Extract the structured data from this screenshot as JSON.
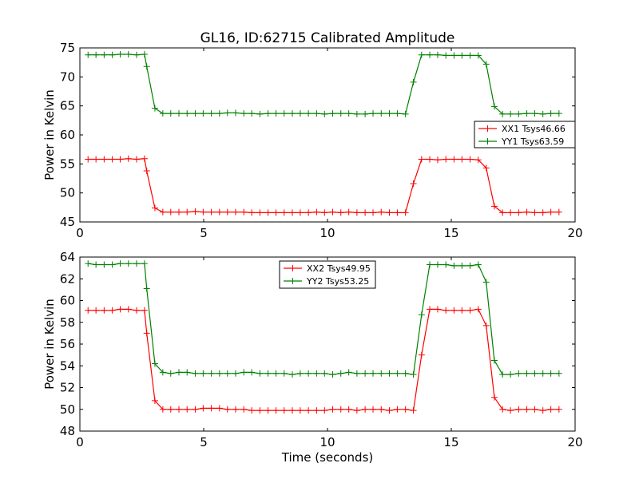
{
  "chart_data": {
    "title": "GL16, ID:62715 Calibrated Amplitude",
    "panels": [
      {
        "type": "line",
        "xlabel": "",
        "ylabel": "Power in Kelvin",
        "xlim": [
          0,
          20
        ],
        "ylim": [
          45,
          75
        ],
        "xticks": [
          0,
          5,
          10,
          15,
          20
        ],
        "yticks": [
          45,
          50,
          55,
          60,
          65,
          70,
          75
        ],
        "grid": false,
        "legend": "right",
        "series": [
          {
            "name": "XX1 Tsys46.66",
            "color": "#ff0000",
            "x": [
              0.33,
              0.65,
              0.98,
              1.31,
              1.63,
              1.96,
              2.29,
              2.61,
              2.7,
              3.03,
              3.35,
              3.67,
              4.0,
              4.33,
              4.66,
              4.98,
              5.31,
              5.64,
              5.96,
              6.29,
              6.62,
              6.94,
              7.27,
              7.6,
              7.92,
              8.25,
              8.58,
              8.9,
              9.23,
              9.56,
              9.88,
              10.21,
              10.54,
              10.86,
              11.19,
              11.52,
              11.84,
              12.17,
              12.5,
              12.82,
              13.15,
              13.47,
              13.8,
              14.13,
              14.45,
              14.78,
              15.11,
              15.43,
              15.76,
              16.09,
              16.41,
              16.74,
              17.07,
              17.39,
              17.72,
              18.05,
              18.37,
              18.7,
              19.02,
              19.35
            ],
            "y": [
              55.8,
              55.8,
              55.8,
              55.8,
              55.8,
              55.9,
              55.8,
              55.9,
              53.8,
              47.4,
              46.7,
              46.7,
              46.7,
              46.7,
              46.8,
              46.7,
              46.7,
              46.7,
              46.7,
              46.7,
              46.7,
              46.6,
              46.6,
              46.6,
              46.6,
              46.6,
              46.6,
              46.6,
              46.6,
              46.7,
              46.6,
              46.7,
              46.6,
              46.7,
              46.6,
              46.6,
              46.6,
              46.7,
              46.6,
              46.6,
              46.6,
              51.6,
              55.8,
              55.8,
              55.7,
              55.8,
              55.8,
              55.8,
              55.8,
              55.7,
              54.3,
              47.7,
              46.6,
              46.6,
              46.6,
              46.7,
              46.6,
              46.6,
              46.7,
              46.7
            ]
          },
          {
            "name": "YY1 Tsys63.59",
            "color": "#008000",
            "x": [
              0.33,
              0.65,
              0.98,
              1.31,
              1.63,
              1.96,
              2.29,
              2.61,
              2.7,
              3.03,
              3.35,
              3.67,
              4.0,
              4.33,
              4.66,
              4.98,
              5.31,
              5.64,
              5.96,
              6.29,
              6.62,
              6.94,
              7.27,
              7.6,
              7.92,
              8.25,
              8.58,
              8.9,
              9.23,
              9.56,
              9.88,
              10.21,
              10.54,
              10.86,
              11.19,
              11.52,
              11.84,
              12.17,
              12.5,
              12.82,
              13.15,
              13.47,
              13.8,
              14.13,
              14.45,
              14.78,
              15.11,
              15.43,
              15.76,
              16.09,
              16.41,
              16.74,
              17.07,
              17.39,
              17.72,
              18.05,
              18.37,
              18.7,
              19.02,
              19.35
            ],
            "y": [
              73.8,
              73.8,
              73.8,
              73.8,
              73.9,
              73.9,
              73.8,
              73.9,
              71.8,
              64.6,
              63.7,
              63.7,
              63.7,
              63.7,
              63.7,
              63.7,
              63.7,
              63.7,
              63.8,
              63.8,
              63.7,
              63.7,
              63.6,
              63.7,
              63.7,
              63.7,
              63.7,
              63.7,
              63.7,
              63.7,
              63.6,
              63.7,
              63.7,
              63.7,
              63.6,
              63.6,
              63.7,
              63.7,
              63.7,
              63.7,
              63.6,
              69.1,
              73.8,
              73.8,
              73.8,
              73.7,
              73.7,
              73.7,
              73.7,
              73.7,
              72.2,
              64.9,
              63.6,
              63.6,
              63.6,
              63.7,
              63.7,
              63.6,
              63.7,
              63.7
            ]
          }
        ]
      },
      {
        "type": "line",
        "xlabel": "Time (seconds)",
        "ylabel": "Power in Kelvin",
        "xlim": [
          0,
          20
        ],
        "ylim": [
          48,
          64
        ],
        "xticks": [
          0,
          5,
          10,
          15,
          20
        ],
        "yticks": [
          48,
          50,
          52,
          54,
          56,
          58,
          60,
          62,
          64
        ],
        "grid": false,
        "legend": "top-center",
        "series": [
          {
            "name": "XX2 Tsys49.95",
            "color": "#ff0000",
            "x": [
              0.33,
              0.65,
              0.98,
              1.31,
              1.63,
              1.96,
              2.29,
              2.61,
              2.7,
              3.03,
              3.35,
              3.67,
              4.0,
              4.33,
              4.66,
              4.98,
              5.31,
              5.64,
              5.96,
              6.29,
              6.62,
              6.94,
              7.27,
              7.6,
              7.92,
              8.25,
              8.58,
              8.9,
              9.23,
              9.56,
              9.88,
              10.21,
              10.54,
              10.86,
              11.19,
              11.52,
              11.84,
              12.17,
              12.5,
              12.82,
              13.15,
              13.47,
              13.8,
              14.13,
              14.45,
              14.78,
              15.11,
              15.43,
              15.76,
              16.09,
              16.41,
              16.74,
              17.07,
              17.39,
              17.72,
              18.05,
              18.37,
              18.7,
              19.02,
              19.35
            ],
            "y": [
              59.1,
              59.1,
              59.1,
              59.1,
              59.2,
              59.2,
              59.1,
              59.1,
              57.0,
              50.8,
              50.0,
              50.0,
              50.0,
              50.0,
              50.0,
              50.1,
              50.1,
              50.1,
              50.0,
              50.0,
              50.0,
              49.9,
              49.9,
              49.9,
              49.9,
              49.9,
              49.9,
              49.9,
              49.9,
              49.9,
              49.9,
              50.0,
              50.0,
              50.0,
              49.9,
              50.0,
              50.0,
              50.0,
              49.9,
              50.0,
              50.0,
              49.9,
              55.0,
              59.2,
              59.2,
              59.1,
              59.1,
              59.1,
              59.1,
              59.2,
              57.7,
              51.1,
              50.0,
              49.9,
              50.0,
              50.0,
              50.0,
              49.9,
              50.0,
              50.0
            ]
          },
          {
            "name": "YY2 Tsys53.25",
            "color": "#008000",
            "x": [
              0.33,
              0.65,
              0.98,
              1.31,
              1.63,
              1.96,
              2.29,
              2.61,
              2.7,
              3.03,
              3.35,
              3.67,
              4.0,
              4.33,
              4.66,
              4.98,
              5.31,
              5.64,
              5.96,
              6.29,
              6.62,
              6.94,
              7.27,
              7.6,
              7.92,
              8.25,
              8.58,
              8.9,
              9.23,
              9.56,
              9.88,
              10.21,
              10.54,
              10.86,
              11.19,
              11.52,
              11.84,
              12.17,
              12.5,
              12.82,
              13.15,
              13.47,
              13.8,
              14.13,
              14.45,
              14.78,
              15.11,
              15.43,
              15.76,
              16.09,
              16.41,
              16.74,
              17.07,
              17.39,
              17.72,
              18.05,
              18.37,
              18.7,
              19.02,
              19.35
            ],
            "y": [
              63.4,
              63.3,
              63.3,
              63.3,
              63.4,
              63.4,
              63.4,
              63.4,
              61.1,
              54.2,
              53.4,
              53.3,
              53.4,
              53.4,
              53.3,
              53.3,
              53.3,
              53.3,
              53.3,
              53.3,
              53.4,
              53.4,
              53.3,
              53.3,
              53.3,
              53.3,
              53.2,
              53.3,
              53.3,
              53.3,
              53.3,
              53.2,
              53.3,
              53.4,
              53.3,
              53.3,
              53.3,
              53.3,
              53.3,
              53.3,
              53.3,
              53.2,
              58.7,
              63.3,
              63.3,
              63.3,
              63.2,
              63.2,
              63.2,
              63.3,
              61.7,
              54.5,
              53.2,
              53.2,
              53.3,
              53.3,
              53.3,
              53.3,
              53.3,
              53.3
            ]
          }
        ]
      }
    ]
  }
}
